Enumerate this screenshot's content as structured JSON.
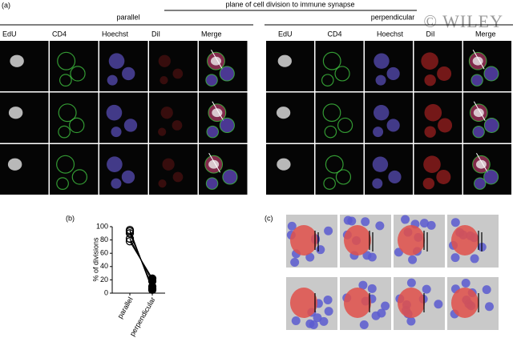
{
  "watermark": "© WILEY",
  "panel_a": {
    "label": "(a)",
    "title": "plane of cell division to immune synapse",
    "groups": [
      {
        "name": "parallel",
        "columns": [
          "EdU",
          "CD4",
          "Hoechst",
          "DiI",
          "Merge"
        ]
      },
      {
        "name": "perpendicular",
        "columns": [
          "EdU",
          "CD4",
          "Hoechst",
          "DiI",
          "Merge"
        ]
      }
    ]
  },
  "panel_b": {
    "label": "(b)"
  },
  "panel_c": {
    "label": "(c)"
  },
  "chart_data": {
    "type": "paired-dot",
    "ylabel": "% of divisions",
    "categories": [
      "parallel",
      "perpendicular"
    ],
    "color": "#000000",
    "series": [
      {
        "values": [
          95,
          5
        ]
      },
      {
        "values": [
          93,
          7
        ]
      },
      {
        "values": [
          90,
          10
        ]
      },
      {
        "values": [
          82,
          18
        ]
      },
      {
        "values": [
          78,
          22
        ]
      }
    ],
    "ylim": [
      0,
      100
    ],
    "yticks": [
      0,
      20,
      40,
      60,
      80,
      100
    ]
  }
}
